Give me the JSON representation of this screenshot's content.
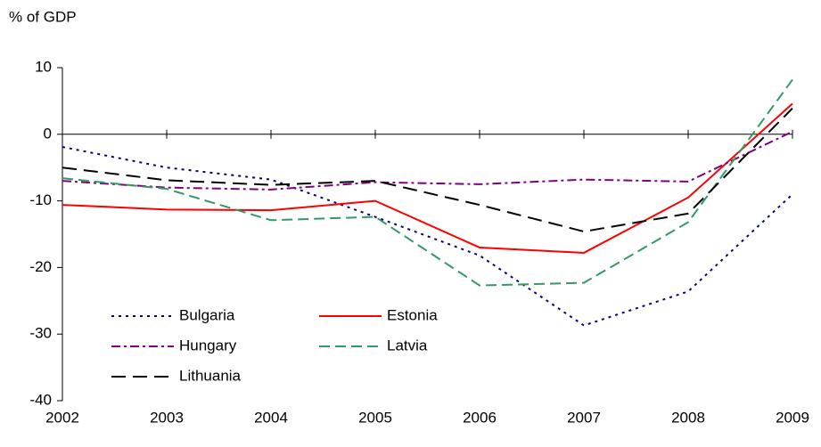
{
  "chart_data": {
    "type": "line",
    "y_label": "% of GDP",
    "x": [
      2002,
      2003,
      2004,
      2005,
      2006,
      2007,
      2008,
      2009
    ],
    "xlim": [
      2002,
      2009
    ],
    "xticks": [
      2002,
      2003,
      2004,
      2005,
      2006,
      2007,
      2008,
      2009
    ],
    "ylim": [
      -40,
      10
    ],
    "yticks": [
      -40,
      -30,
      -20,
      -10,
      0,
      10
    ],
    "series": [
      {
        "name": "Bulgaria",
        "color": "#000080",
        "dash": "dotted",
        "values": [
          -1.9,
          -5.0,
          -6.8,
          -12.4,
          -18.2,
          -28.7,
          -23.6,
          -9.0
        ]
      },
      {
        "name": "Estonia",
        "color": "#ff0000",
        "dash": "solid",
        "values": [
          -10.6,
          -11.3,
          -11.4,
          -10.0,
          -17.0,
          -17.8,
          -9.5,
          4.6
        ]
      },
      {
        "name": "Hungary",
        "color": "#800080",
        "dash": "dashdot",
        "values": [
          -7.0,
          -8.0,
          -8.3,
          -7.2,
          -7.5,
          -6.8,
          -7.1,
          0.4
        ]
      },
      {
        "name": "Latvia",
        "color": "#339966",
        "dash": "dashed",
        "values": [
          -6.6,
          -8.2,
          -12.9,
          -12.4,
          -22.7,
          -22.3,
          -13.2,
          8.2
        ]
      },
      {
        "name": "Lithuania",
        "color": "#000000",
        "dash": "longdash",
        "values": [
          -5.0,
          -6.9,
          -7.6,
          -7.0,
          -10.6,
          -14.6,
          -11.9,
          3.9
        ]
      }
    ]
  }
}
